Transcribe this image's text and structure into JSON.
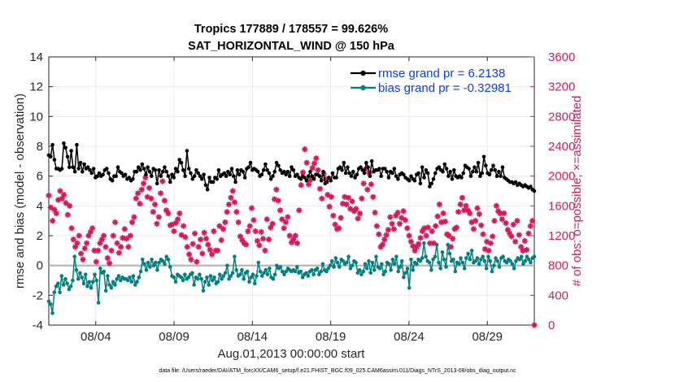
{
  "chart_data": {
    "type": "line",
    "title": "Tropics 177889 / 178557 = 99.626%",
    "subtitle": "SAT_HORIZONTAL_WIND @ 150 hPa",
    "xlabel": "Aug.01,2013 00:00:00 start",
    "ylabel": "rmse and bias (model - observation)",
    "y2label": "# of obs: o=possible; ×=assimilated",
    "xlim": [
      0,
      124
    ],
    "ylim": [
      -4,
      14
    ],
    "y2lim": [
      0,
      3600
    ],
    "x_ticks": [
      12,
      32,
      52,
      72,
      92,
      112
    ],
    "x_tick_labels": [
      "08/04",
      "08/09",
      "08/14",
      "08/19",
      "08/24",
      "08/29"
    ],
    "y_ticks": [
      -4,
      -2,
      0,
      2,
      4,
      6,
      8,
      10,
      12,
      14
    ],
    "y2_ticks": [
      0,
      400,
      800,
      1200,
      1600,
      2000,
      2400,
      2800,
      3200,
      3600
    ],
    "grid": true,
    "legend_position": "top-right",
    "footer": "data file: /Users/raeder/DAI/ATM_forcXX/CAM6_setup/f.e21.FHIST_BGC.f09_025.CAM6assim.011/Diags_NTrS_2013-08/obs_diag_output.nc",
    "colors": {
      "rmse": "#000000",
      "bias": "#00807f",
      "obs": "#d6195c",
      "zero_line": "#b3b3b3",
      "grid": "#e6e6e6"
    },
    "series": [
      {
        "name": "rmse grand pr = 6.2138",
        "axis": "left",
        "marker": "circle",
        "values": [
          7.4,
          7.3,
          8.1,
          7.1,
          6.5,
          6.5,
          6.4,
          6.5,
          8.2,
          7.9,
          7.3,
          6.6,
          7.7,
          6.6,
          6.3,
          8.1,
          6.5,
          6.9,
          6.3,
          6.8,
          6.5,
          6.6,
          6.4,
          6.2,
          6.5,
          5.9,
          6.0,
          6.2,
          6.0,
          6.1,
          6.4,
          6.5,
          6.2,
          5.8,
          5.7,
          6.0,
          6.0,
          6.6,
          6.3,
          6.2,
          6.0,
          6.1,
          5.8,
          5.9,
          5.7,
          5.8,
          6.3,
          6.3,
          6.6,
          6.4,
          6.8,
          6.5,
          6.1,
          6.6,
          6.3,
          6.0,
          6.5,
          6.4,
          5.5,
          6.4,
          6.0,
          6.3,
          6.6,
          6.3,
          6.0,
          5.6,
          6.1,
          5.9,
          6.5,
          6.3,
          7.1,
          6.9,
          6.4,
          6.0,
          7.7,
          6.5,
          6.2,
          5.8,
          6.0,
          6.4,
          6.2,
          6.0,
          5.8,
          6.1,
          5.4,
          5.1,
          5.9,
          5.6,
          5.6,
          5.9,
          5.8,
          6.4,
          6.0,
          6.1,
          6.2,
          6.0,
          6.3,
          6.1,
          6.5,
          6.0,
          5.6,
          6.4,
          6.1,
          6.4,
          6.3,
          5.9,
          6.5,
          6.6,
          6.9,
          6.4,
          6.5,
          6.4,
          6.3,
          6.0,
          6.1,
          6.4,
          6.8,
          6.4,
          6.2,
          5.8,
          6.0,
          6.3,
          6.9,
          6.7,
          6.4,
          6.2,
          6.3,
          6.1,
          6.3,
          6.0,
          6.6,
          6.4,
          6.0,
          6.1,
          5.9,
          5.8,
          6.0,
          5.9,
          5.7,
          6.0,
          6.3,
          6.0,
          5.8,
          6.1,
          6.1,
          6.0,
          5.7,
          6.3,
          5.5,
          5.6,
          5.9,
          5.7,
          6.2,
          5.9,
          5.9,
          6.5,
          6.6,
          6.4,
          6.9,
          6.2,
          6.6,
          6.2,
          6.0,
          6.3,
          5.9,
          6.1,
          6.5,
          6.6,
          6.4,
          6.2,
          6.9,
          6.6,
          6.0,
          7.0,
          6.3,
          6.4,
          6.4,
          6.5,
          6.0,
          6.5,
          6.5,
          6.3,
          5.9,
          6.3,
          6.2,
          6.5,
          6.0,
          5.8,
          6.1,
          6.2,
          6.1,
          5.9,
          5.8,
          5.7,
          6.0,
          5.8,
          5.7,
          6.1,
          6.2,
          5.5,
          6.6,
          5.9,
          6.4,
          6.2,
          5.3,
          5.5,
          5.8,
          6.2,
          6.5,
          6.6,
          6.4,
          6.3,
          6.8,
          6.5,
          6.0,
          6.3,
          5.8,
          6.4,
          6.0,
          5.9,
          6.0,
          5.9,
          6.2,
          6.7,
          6.6,
          6.5,
          6.0,
          6.3,
          6.6,
          6.3,
          6.9,
          6.0,
          6.2,
          7.3,
          6.7,
          6.2,
          6.1,
          6.4,
          6.7,
          6.4,
          6.0,
          6.3,
          6.0,
          6.6,
          5.9,
          5.8,
          5.7,
          5.6,
          5.6,
          5.5,
          5.6,
          5.4,
          5.5,
          5.4,
          5.3,
          5.4,
          5.3,
          5.2,
          5.3,
          5.1,
          5.0
        ]
      },
      {
        "name": "bias grand pr = -0.32981",
        "axis": "left",
        "marker": "circle",
        "values": [
          -2.4,
          -2.6,
          -3.2,
          -1.8,
          -1.4,
          -1.2,
          -1.8,
          -0.7,
          -1.3,
          -0.9,
          -1.2,
          -1.6,
          -1.4,
          -1.0,
          0.6,
          -0.3,
          -0.9,
          -0.5,
          -0.8,
          -1.2,
          -0.6,
          -1.4,
          -1.1,
          -1.5,
          -1.1,
          -0.6,
          -1.0,
          -2.5,
          -0.2,
          -0.5,
          -0.4,
          -1.7,
          -0.7,
          -1.3,
          -1.5,
          -1.1,
          -1.3,
          -0.9,
          -0.7,
          -1.0,
          -0.8,
          -0.9,
          -0.9,
          -1.0,
          -0.8,
          -1.1,
          -0.7,
          -1.3,
          -1.1,
          -0.8,
          -0.4,
          0.4,
          0.1,
          -0.3,
          0.2,
          -0.1,
          0.4,
          0.0,
          0.2,
          -0.3,
          0.2,
          0.4,
          0.3,
          0.1,
          0.6,
          0.4,
          -0.1,
          -0.7,
          -0.8,
          -1.1,
          -0.6,
          -0.7,
          -0.8,
          -1.0,
          -0.6,
          -0.9,
          -0.8,
          -0.6,
          -0.5,
          -1.3,
          -0.8,
          -0.9,
          -0.6,
          -0.9,
          -1.7,
          -1.1,
          -0.8,
          -1.3,
          -0.7,
          -1.0,
          -0.8,
          -1.2,
          -1.1,
          -0.6,
          -0.9,
          -0.7,
          -0.5,
          0.0,
          -0.9,
          -0.7,
          -0.5,
          0.6,
          -0.3,
          -0.7,
          -0.6,
          -0.3,
          -0.9,
          -0.5,
          -0.4,
          -1.1,
          -0.8,
          -0.6,
          -1.2,
          -0.7,
          0.2,
          -0.4,
          -0.7,
          -0.5,
          -0.3,
          -0.6,
          -0.2,
          -0.8,
          -0.9,
          -0.6,
          0.0,
          -0.2,
          -0.1,
          -0.4,
          -0.6,
          -0.4,
          -0.2,
          -0.3,
          -0.4,
          -0.3,
          -0.4,
          -0.1,
          -0.5,
          -0.4,
          -0.8,
          -0.6,
          -0.5,
          -0.7,
          -0.4,
          -0.3,
          -0.6,
          -0.3,
          -0.2,
          -0.6,
          -0.4,
          0.1,
          -0.3,
          -0.4,
          -0.2,
          0.0,
          0.3,
          -0.1,
          0.5,
          0.2,
          -0.1,
          0.4,
          0.3,
          0.1,
          0.2,
          0.6,
          -0.2,
          0.0,
          0.3,
          0.2,
          -0.5,
          -0.3,
          -0.6,
          -0.4,
          0.1,
          -0.2,
          0.3,
          -0.5,
          0.2,
          -0.3,
          0.6,
          -0.1,
          -0.2,
          0.1,
          -0.6,
          -0.4,
          0.2,
          0.1,
          -0.3,
          0.4,
          0.1,
          0.6,
          -0.4,
          -0.1,
          0.3,
          -0.8,
          -0.5,
          -0.2,
          -1.5,
          0.4,
          -0.3,
          0.2,
          0.1,
          0.4,
          0.3,
          0.5,
          1.5,
          0.6,
          0.3,
          0.2,
          -0.3,
          0.4,
          0.6,
          1.4,
          0.2,
          -0.2,
          0.9,
          0.4,
          -0.1,
          1.4,
          0.8,
          0.3,
          0.4,
          -0.4,
          0.2,
          0.1,
          0.5,
          0.2,
          -0.2,
          0.5,
          0.8,
          0.4,
          1.0,
          0.2,
          0.3,
          0.5,
          0.1,
          0.4,
          0.6,
          0.3,
          -0.2,
          0.6,
          0.3,
          -0.4,
          0.0,
          0.5,
          0.3,
          -0.1,
          0.5,
          0.6,
          0.3,
          0.2,
          0.4,
          0.3,
          0.1,
          -0.2,
          0.3,
          0.5,
          0.4,
          0.6,
          0.1,
          0.3,
          0.6,
          0.4,
          0.2,
          0.5,
          0.6
        ]
      },
      {
        "name": "# of obs possible/assimilated",
        "axis": "right",
        "marker": "asterisk",
        "values": [
          1740,
          1580,
          1400,
          1550,
          1500,
          1680,
          1800,
          1700,
          1750,
          1640,
          1480,
          1600,
          1300,
          1150,
          1050,
          1100,
          1200,
          960,
          880,
          1030,
          1100,
          1200,
          1250,
          1300,
          1000,
          850,
          1000,
          1100,
          1150,
          1200,
          1050,
          900,
          830,
          1000,
          1200,
          1380,
          1100,
          970,
          1050,
          1170,
          1290,
          1160,
          1050,
          1200,
          1380,
          1450,
          1700,
          1770,
          1630,
          1820,
          1900,
          1980,
          1720,
          1840,
          1700,
          1520,
          1620,
          1360,
          1450,
          1770,
          1930,
          1670,
          1540,
          1500,
          1340,
          1350,
          1260,
          1370,
          1420,
          1500,
          1210,
          1330,
          1180,
          1050,
          950,
          880,
          1090,
          1230,
          850,
          1050,
          1150,
          960,
          1240,
          1160,
          1080,
          1010,
          950,
          1260,
          1000,
          1000,
          1330,
          1140,
          1290,
          1380,
          1520,
          1620,
          1710,
          1800,
          1650,
          1520,
          1380,
          1190,
          1140,
          1100,
          1080,
          1260,
          1330,
          1570,
          1410,
          1260,
          1130,
          1070,
          1250,
          1160,
          1000,
          1420,
          1150,
          1310,
          1360,
          1690,
          1820,
          1670,
          1540,
          1420,
          1300,
          1380,
          1450,
          1200,
          1110,
          1150,
          1200,
          1100,
          1540,
          1880,
          2050,
          2360,
          2180,
          1890,
          1950,
          2110,
          2170,
          2240,
          2080,
          1830,
          1700,
          2030,
          1960,
          1750,
          1590,
          1720,
          1470,
          1350,
          1290,
          1300,
          1440,
          1630,
          1720,
          1620,
          1710,
          1560,
          1660,
          1530,
          1560,
          1430,
          1500,
          1700,
          1900,
          2090,
          1820,
          2040,
          1890,
          1720,
          1510,
          1330,
          1220,
          1050,
          1080,
          1150,
          1210,
          1280,
          1450,
          1360,
          1290,
          1470,
          1510,
          1360,
          1440,
          1530,
          1410,
          1300,
          1200,
          1120,
          1060,
          1000,
          1050,
          1090,
          1170,
          1260,
          1300,
          1200,
          1310,
          1100,
          1260,
          1100,
          1330,
          1460,
          1620,
          1380,
          1500,
          1390,
          1220,
          1200,
          1050,
          1160,
          1290,
          1310,
          1520,
          1620,
          1710,
          1540,
          1600,
          1540,
          1500,
          1380,
          1290,
          1400,
          1570,
          1490,
          1340,
          1220,
          1020,
          1120,
          1000,
          1100,
          1190,
          1400,
          1600,
          1530,
          1500,
          1420,
          1500,
          1370,
          1280,
          1230,
          1190,
          1350,
          1120,
          1400,
          1210,
          1050,
          1000,
          1130,
          1010,
          1230,
          1330,
          1400,
          0
        ]
      }
    ]
  }
}
